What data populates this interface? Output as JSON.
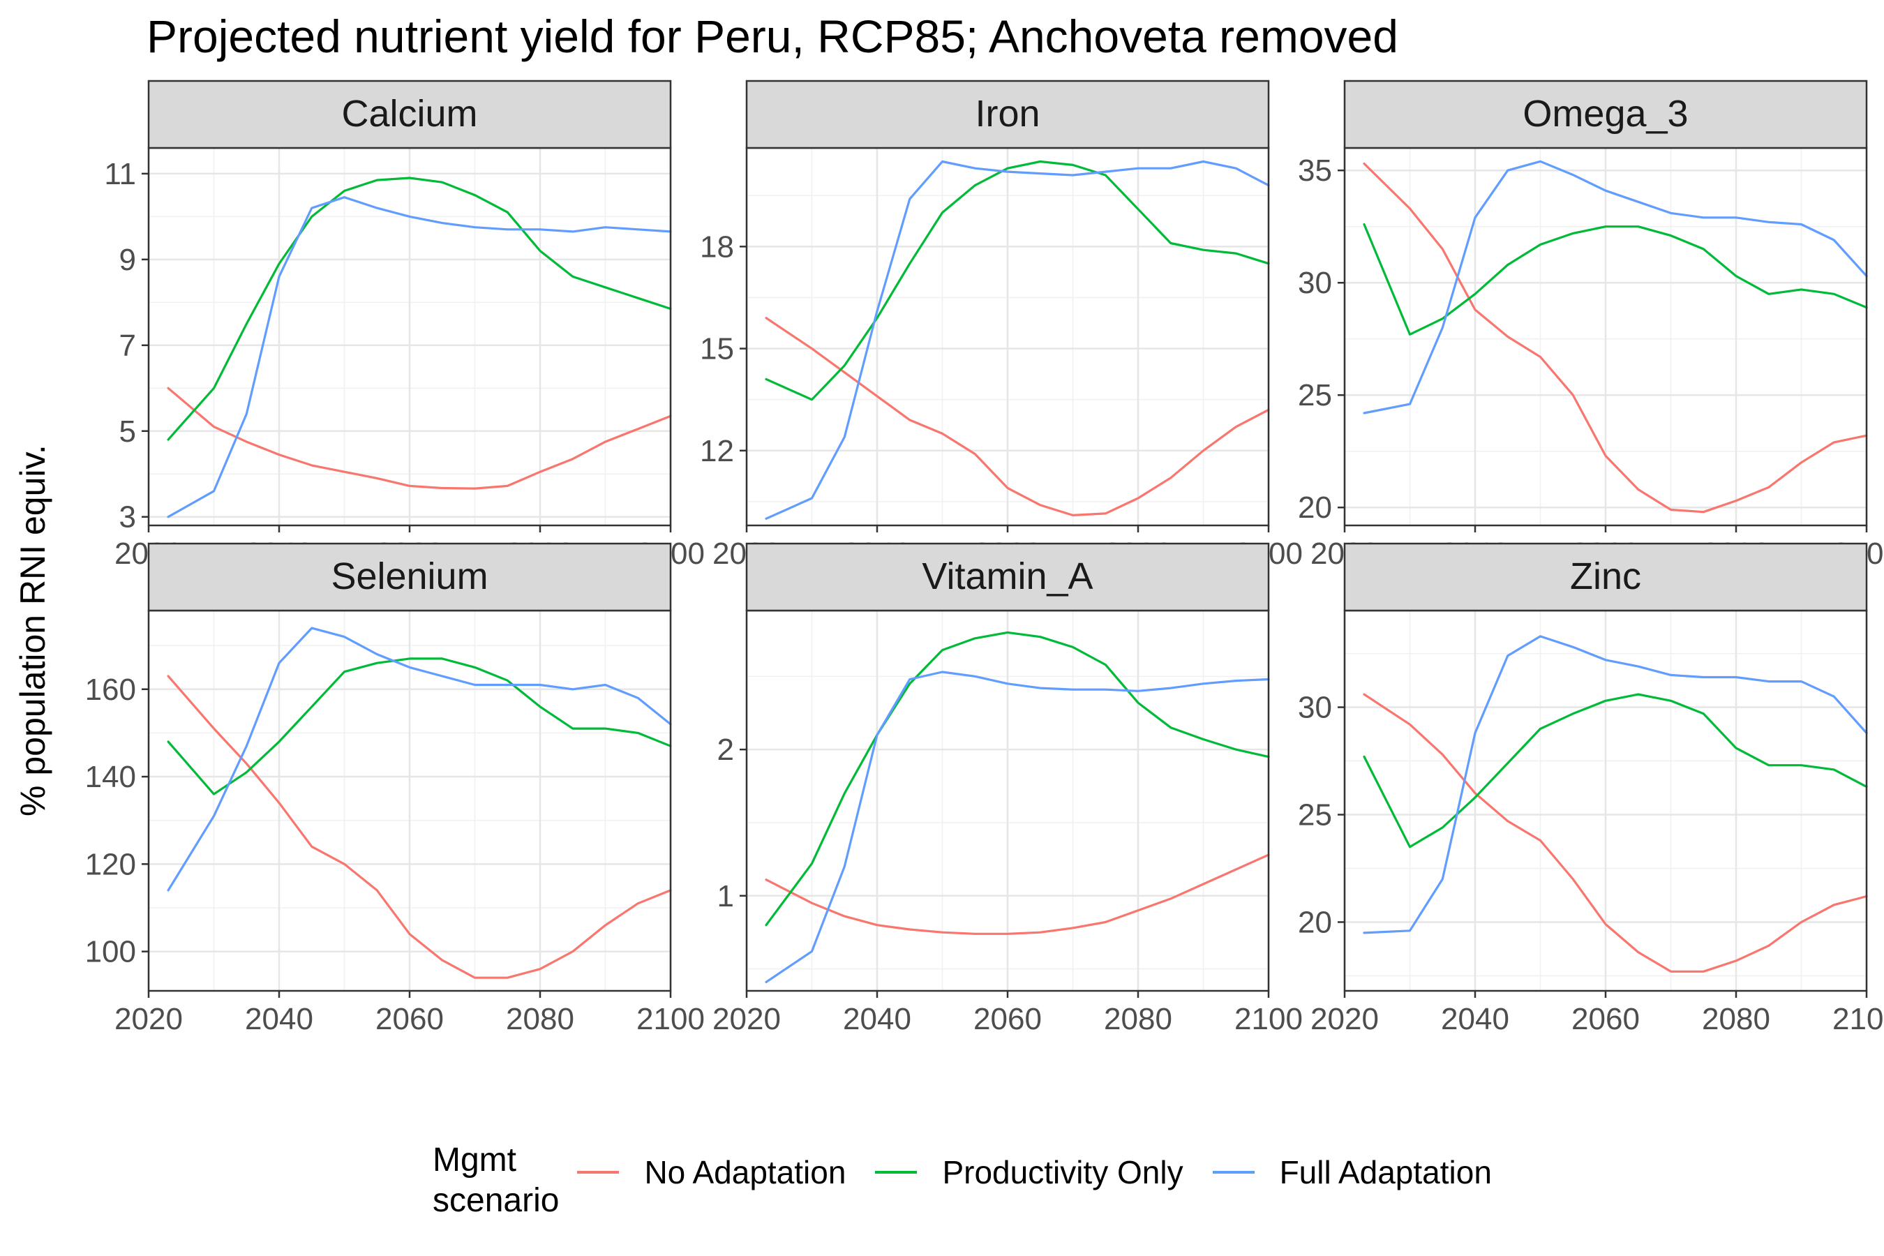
{
  "title": "Projected nutrient yield for Peru, RCP85; Anchoveta removed",
  "ylabel": "% population RNI equiv.",
  "legend": {
    "title_line1": "Mgmt",
    "title_line2": "scenario",
    "items": [
      {
        "label": "No Adaptation",
        "color": "#F8766D"
      },
      {
        "label": "Productivity Only",
        "color": "#00BA38"
      },
      {
        "label": "Full Adaptation",
        "color": "#619CFF"
      }
    ]
  },
  "chart_data": {
    "type": "line",
    "x": [
      2023,
      2030,
      2035,
      2040,
      2045,
      2050,
      2055,
      2060,
      2065,
      2070,
      2075,
      2080,
      2085,
      2090,
      2095,
      2100
    ],
    "xlim": [
      2020,
      2100
    ],
    "xticks": [
      2020,
      2040,
      2060,
      2080,
      2100
    ],
    "facets": [
      {
        "name": "Calcium",
        "ylim": [
          2.8,
          11.6
        ],
        "yticks": [
          3,
          5,
          7,
          9,
          11
        ],
        "series": [
          {
            "name": "No Adaptation",
            "values": [
              6.0,
              5.1,
              4.75,
              4.45,
              4.2,
              4.05,
              3.9,
              3.72,
              3.67,
              3.66,
              3.72,
              4.05,
              4.35,
              4.75,
              5.05,
              5.35
            ]
          },
          {
            "name": "Productivity Only",
            "values": [
              4.8,
              6.0,
              7.5,
              8.9,
              10.0,
              10.6,
              10.85,
              10.9,
              10.8,
              10.5,
              10.1,
              9.2,
              8.6,
              8.35,
              8.1,
              7.85
            ]
          },
          {
            "name": "Full Adaptation",
            "values": [
              3.0,
              3.6,
              5.4,
              8.6,
              10.2,
              10.45,
              10.2,
              10.0,
              9.85,
              9.75,
              9.7,
              9.7,
              9.65,
              9.75,
              9.7,
              9.65
            ]
          }
        ]
      },
      {
        "name": "Iron",
        "ylim": [
          9.8,
          20.9
        ],
        "yticks": [
          12,
          15,
          18
        ],
        "series": [
          {
            "name": "No Adaptation",
            "values": [
              15.9,
              15.0,
              14.3,
              13.6,
              12.9,
              12.5,
              11.9,
              10.9,
              10.4,
              10.1,
              10.15,
              10.6,
              11.2,
              12.0,
              12.7,
              13.2
            ]
          },
          {
            "name": "Productivity Only",
            "values": [
              14.1,
              13.5,
              14.5,
              15.9,
              17.5,
              19.0,
              19.8,
              20.3,
              20.5,
              20.4,
              20.1,
              19.1,
              18.1,
              17.9,
              17.8,
              17.5
            ]
          },
          {
            "name": "Full Adaptation",
            "values": [
              10.0,
              10.6,
              12.4,
              16.1,
              19.4,
              20.5,
              20.3,
              20.2,
              20.15,
              20.1,
              20.2,
              20.3,
              20.3,
              20.5,
              20.3,
              19.8
            ]
          }
        ]
      },
      {
        "name": "Omega_3",
        "ylim": [
          19.2,
          36.0
        ],
        "yticks": [
          20,
          25,
          30,
          35
        ],
        "series": [
          {
            "name": "No Adaptation",
            "values": [
              35.3,
              33.3,
              31.5,
              28.8,
              27.6,
              26.7,
              25.0,
              22.3,
              20.8,
              19.9,
              19.8,
              20.3,
              20.9,
              22.0,
              22.9,
              23.2
            ]
          },
          {
            "name": "Productivity Only",
            "values": [
              32.6,
              27.7,
              28.4,
              29.5,
              30.8,
              31.7,
              32.2,
              32.5,
              32.5,
              32.1,
              31.5,
              30.3,
              29.5,
              29.7,
              29.5,
              28.9
            ]
          },
          {
            "name": "Full Adaptation",
            "values": [
              24.2,
              24.6,
              28.0,
              32.9,
              35.0,
              35.4,
              34.8,
              34.1,
              33.6,
              33.1,
              32.9,
              32.9,
              32.7,
              32.6,
              31.9,
              30.3
            ]
          }
        ]
      },
      {
        "name": "Selenium",
        "ylim": [
          91,
          178
        ],
        "yticks": [
          100,
          120,
          140,
          160
        ],
        "series": [
          {
            "name": "No Adaptation",
            "values": [
              163,
              151,
              143,
              134,
              124,
              120,
              114,
              104,
              98,
              94,
              94,
              96,
              100,
              106,
              111,
              114
            ]
          },
          {
            "name": "Productivity Only",
            "values": [
              148,
              136,
              141,
              148,
              156,
              164,
              166,
              167,
              167,
              165,
              162,
              156,
              151,
              151,
              150,
              147
            ]
          },
          {
            "name": "Full Adaptation",
            "values": [
              114,
              131,
              147,
              166,
              174,
              172,
              168,
              165,
              163,
              161,
              161,
              161,
              160,
              161,
              158,
              152
            ]
          }
        ]
      },
      {
        "name": "Vitamin_A",
        "ylim": [
          0.35,
          2.95
        ],
        "yticks": [
          1,
          2
        ],
        "series": [
          {
            "name": "No Adaptation",
            "values": [
              1.11,
              0.95,
              0.86,
              0.8,
              0.77,
              0.75,
              0.74,
              0.74,
              0.75,
              0.78,
              0.82,
              0.9,
              0.98,
              1.08,
              1.18,
              1.28
            ]
          },
          {
            "name": "Productivity Only",
            "values": [
              0.8,
              1.22,
              1.7,
              2.1,
              2.45,
              2.68,
              2.76,
              2.8,
              2.77,
              2.7,
              2.58,
              2.32,
              2.15,
              2.07,
              2.0,
              1.95
            ]
          },
          {
            "name": "Full Adaptation",
            "values": [
              0.41,
              0.62,
              1.2,
              2.1,
              2.48,
              2.53,
              2.5,
              2.45,
              2.42,
              2.41,
              2.41,
              2.4,
              2.42,
              2.45,
              2.47,
              2.48
            ]
          }
        ]
      },
      {
        "name": "Zinc",
        "ylim": [
          16.8,
          34.5
        ],
        "yticks": [
          20,
          25,
          30
        ],
        "series": [
          {
            "name": "No Adaptation",
            "values": [
              30.6,
              29.2,
              27.8,
              26.0,
              24.7,
              23.8,
              22.0,
              19.9,
              18.6,
              17.7,
              17.7,
              18.2,
              18.9,
              20.0,
              20.8,
              21.2
            ]
          },
          {
            "name": "Productivity Only",
            "values": [
              27.7,
              23.5,
              24.4,
              25.8,
              27.4,
              29.0,
              29.7,
              30.3,
              30.6,
              30.3,
              29.7,
              28.1,
              27.3,
              27.3,
              27.1,
              26.3
            ]
          },
          {
            "name": "Full Adaptation",
            "values": [
              19.5,
              19.6,
              22.0,
              28.8,
              32.4,
              33.3,
              32.8,
              32.2,
              31.9,
              31.5,
              31.4,
              31.4,
              31.2,
              31.2,
              30.5,
              28.8
            ]
          }
        ]
      }
    ]
  }
}
